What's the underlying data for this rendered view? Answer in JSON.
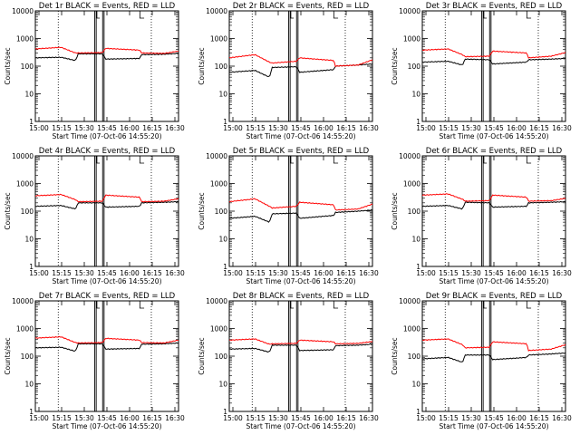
{
  "chart_data": [
    {
      "type": "line",
      "title": "Det 1r BLACK = Events, RED = LLD",
      "xlabel": "Start Time (07-Oct-06 14:55:20)",
      "ylabel": "Counts/sec",
      "yscale": "log",
      "ylim": [
        1,
        10000
      ],
      "series": [
        {
          "name": "Events",
          "color": "#000000",
          "values": [
            200,
            210,
            160,
            280,
            280,
            180,
            190,
            260,
            270,
            290
          ]
        },
        {
          "name": "LLD",
          "color": "#ff0000",
          "values": [
            420,
            480,
            300,
            300,
            310,
            440,
            380,
            300,
            290,
            350
          ]
        }
      ]
    },
    {
      "type": "line",
      "title": "Det 2r BLACK = Events, RED = LLD",
      "xlabel": "Start Time (07-Oct-06 14:55:20)",
      "ylabel": "Counts/sec",
      "yscale": "log",
      "ylim": [
        1,
        10000
      ],
      "series": [
        {
          "name": "Events",
          "color": "#000000",
          "values": [
            60,
            70,
            40,
            90,
            95,
            60,
            75,
            100,
            110,
            120
          ]
        },
        {
          "name": "LLD",
          "color": "#ff0000",
          "values": [
            200,
            260,
            140,
            130,
            150,
            200,
            160,
            100,
            110,
            170
          ]
        }
      ]
    },
    {
      "type": "line",
      "title": "Det 3r BLACK = Events, RED = LLD",
      "xlabel": "Start Time (07-Oct-06 14:55:20)",
      "ylabel": "Counts/sec",
      "yscale": "log",
      "ylim": [
        1,
        10000
      ],
      "series": [
        {
          "name": "Events",
          "color": "#000000",
          "values": [
            140,
            150,
            110,
            180,
            170,
            120,
            140,
            170,
            180,
            190
          ]
        },
        {
          "name": "LLD",
          "color": "#ff0000",
          "values": [
            380,
            420,
            260,
            220,
            230,
            350,
            300,
            200,
            230,
            310
          ]
        }
      ]
    },
    {
      "type": "line",
      "title": "Det 4r BLACK = Events, RED = LLD",
      "xlabel": "Start Time (07-Oct-06 14:55:20)",
      "ylabel": "Counts/sec",
      "yscale": "log",
      "ylim": [
        1,
        10000
      ],
      "series": [
        {
          "name": "Events",
          "color": "#000000",
          "values": [
            150,
            160,
            120,
            200,
            200,
            140,
            150,
            200,
            210,
            220
          ]
        },
        {
          "name": "LLD",
          "color": "#ff0000",
          "values": [
            360,
            400,
            260,
            220,
            230,
            380,
            320,
            220,
            230,
            280
          ]
        }
      ]
    },
    {
      "type": "line",
      "title": "Det 5r BLACK = Events, RED = LLD",
      "xlabel": "Start Time (07-Oct-06 14:55:20)",
      "ylabel": "Counts/sec",
      "yscale": "log",
      "ylim": [
        1,
        10000
      ],
      "series": [
        {
          "name": "Events",
          "color": "#000000",
          "values": [
            55,
            65,
            40,
            80,
            85,
            55,
            70,
            90,
            100,
            110
          ]
        },
        {
          "name": "LLD",
          "color": "#ff0000",
          "values": [
            220,
            280,
            150,
            130,
            150,
            210,
            170,
            110,
            120,
            180
          ]
        }
      ]
    },
    {
      "type": "line",
      "title": "Det 6r BLACK = Events, RED = LLD",
      "xlabel": "Start Time (07-Oct-06 14:55:20)",
      "ylabel": "Counts/sec",
      "yscale": "log",
      "ylim": [
        1,
        10000
      ],
      "series": [
        {
          "name": "Events",
          "color": "#000000",
          "values": [
            150,
            160,
            120,
            210,
            200,
            140,
            150,
            200,
            210,
            220
          ]
        },
        {
          "name": "LLD",
          "color": "#ff0000",
          "values": [
            380,
            420,
            270,
            230,
            240,
            380,
            320,
            230,
            240,
            290
          ]
        }
      ]
    },
    {
      "type": "line",
      "title": "Det 7r BLACK = Events, RED = LLD",
      "xlabel": "Start Time (07-Oct-06 14:55:20)",
      "ylabel": "Counts/sec",
      "yscale": "log",
      "ylim": [
        1,
        10000
      ],
      "series": [
        {
          "name": "Events",
          "color": "#000000",
          "values": [
            200,
            210,
            150,
            280,
            280,
            180,
            190,
            270,
            280,
            300
          ]
        },
        {
          "name": "LLD",
          "color": "#ff0000",
          "values": [
            450,
            500,
            310,
            300,
            310,
            440,
            380,
            310,
            300,
            380
          ]
        }
      ]
    },
    {
      "type": "line",
      "title": "Det 8r BLACK = Events, RED = LLD",
      "xlabel": "Start Time (07-Oct-06 14:55:20)",
      "ylabel": "Counts/sec",
      "yscale": "log",
      "ylim": [
        1,
        10000
      ],
      "series": [
        {
          "name": "Events",
          "color": "#000000",
          "values": [
            180,
            190,
            140,
            250,
            250,
            160,
            170,
            240,
            250,
            270
          ]
        },
        {
          "name": "LLD",
          "color": "#ff0000",
          "values": [
            380,
            420,
            270,
            280,
            290,
            380,
            330,
            280,
            290,
            340
          ]
        }
      ]
    },
    {
      "type": "line",
      "title": "Det 9r BLACK = Events, RED = LLD",
      "xlabel": "Start Time (07-Oct-06 14:55:20)",
      "ylabel": "Counts/sec",
      "yscale": "log",
      "ylim": [
        1,
        10000
      ],
      "series": [
        {
          "name": "Events",
          "color": "#000000",
          "values": [
            80,
            90,
            60,
            110,
            110,
            75,
            90,
            110,
            120,
            130
          ]
        },
        {
          "name": "LLD",
          "color": "#ff0000",
          "values": [
            380,
            420,
            260,
            200,
            210,
            330,
            280,
            160,
            180,
            260
          ]
        }
      ]
    }
  ],
  "x_ticks": [
    "15:00",
    "15:15",
    "15:30",
    "15:45",
    "16:00",
    "16:15",
    "16:30"
  ],
  "y_ticks": [
    "1",
    "10",
    "100",
    "1000",
    "10000"
  ]
}
